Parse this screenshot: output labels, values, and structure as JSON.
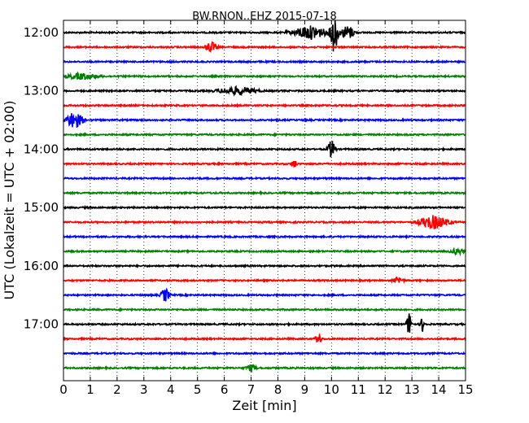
{
  "chart_data": {
    "type": "line",
    "title": "BW.RNON..EHZ 2015-07-18",
    "xlabel": "Zeit  [min]",
    "ylabel": "UTC (Lokalzeit = UTC + 02:00)",
    "xlim": [
      0,
      15
    ],
    "xticks": [
      "0",
      "1",
      "2",
      "3",
      "4",
      "5",
      "6",
      "7",
      "8",
      "9",
      "10",
      "11",
      "12",
      "13",
      "14",
      "15"
    ],
    "yticks": [
      "12:00",
      "13:00",
      "14:00",
      "15:00",
      "16:00",
      "17:00"
    ],
    "ytick_rows": [
      0,
      4,
      8,
      12,
      16,
      20
    ],
    "grid": "vertical dotted",
    "row_interval_min": 15,
    "row_count": 24,
    "color_cycle": [
      "#000000",
      "#ff0000",
      "#0000ff",
      "#008000"
    ],
    "events": [
      {
        "row": 0,
        "t": 9.2,
        "amp": 0.45,
        "dur": 1.6
      },
      {
        "row": 0,
        "t": 10.1,
        "amp": 1.4,
        "dur": 0.35
      },
      {
        "row": 0,
        "t": 10.6,
        "amp": 0.45,
        "dur": 0.7
      },
      {
        "row": 1,
        "t": 5.5,
        "amp": 0.35,
        "dur": 0.5
      },
      {
        "row": 3,
        "t": 0.7,
        "amp": 0.2,
        "dur": 1.5
      },
      {
        "row": 4,
        "t": 6.5,
        "amp": 0.25,
        "dur": 1.8
      },
      {
        "row": 6,
        "t": 0.4,
        "amp": 0.55,
        "dur": 0.8
      },
      {
        "row": 8,
        "t": 10.0,
        "amp": 0.6,
        "dur": 0.35
      },
      {
        "row": 9,
        "t": 8.6,
        "amp": 0.3,
        "dur": 0.25
      },
      {
        "row": 13,
        "t": 13.8,
        "amp": 0.45,
        "dur": 1.4
      },
      {
        "row": 15,
        "t": 14.7,
        "amp": 0.2,
        "dur": 0.6
      },
      {
        "row": 17,
        "t": 12.5,
        "amp": 0.2,
        "dur": 0.5
      },
      {
        "row": 18,
        "t": 3.8,
        "amp": 0.45,
        "dur": 0.4
      },
      {
        "row": 20,
        "t": 12.9,
        "amp": 0.8,
        "dur": 0.25
      },
      {
        "row": 20,
        "t": 13.4,
        "amp": 0.5,
        "dur": 0.2
      },
      {
        "row": 21,
        "t": 9.5,
        "amp": 0.35,
        "dur": 0.3
      },
      {
        "row": 23,
        "t": 7.0,
        "amp": 0.2,
        "dur": 0.5
      }
    ]
  }
}
